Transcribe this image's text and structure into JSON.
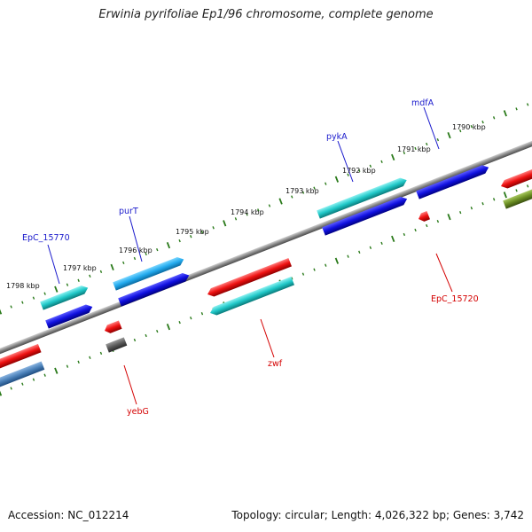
{
  "title": "Erwinia pyrifoliae Ep1/96 chromosome, complete genome",
  "footer": {
    "accession": "Accession: NC_012214",
    "summary": "Topology: circular; Length: 4,026,322 bp; Genes: 3,742"
  },
  "scale_labels": [
    "1798 kbp",
    "1797 kbp",
    "1796 kbp",
    "1795 kbp",
    "1794 kbp",
    "1793 kbp",
    "1792 kbp",
    "1791 kbp",
    "1790 kbp"
  ],
  "gene_labels": {
    "EpC_15770": "EpC_15770",
    "purT": "purT",
    "pykA": "pykA",
    "mdfA": "mdfA",
    "yebG": "yebG",
    "zwf": "zwf",
    "EpC_15720": "EpC_15720"
  },
  "colors": {
    "forward_label": "#1a1acc",
    "reverse_label": "#d40000",
    "backbone": "#888888",
    "ticks": "#2a7a1a",
    "cds": "#1010e0",
    "gene": "#20c8c8",
    "gene_light": "#22aaee",
    "reverse_cds": "#ee1111",
    "rna": "#5a5a5a",
    "steel": "#4a80b8",
    "olive": "#6b8e23"
  }
}
